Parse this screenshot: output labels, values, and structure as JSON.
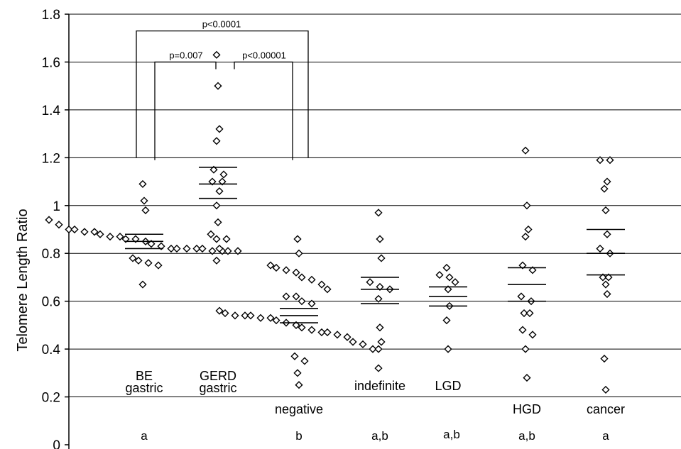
{
  "chart_data": {
    "type": "scatter",
    "ylabel": "Telomere Length Ratio",
    "ylim": [
      0,
      1.8
    ],
    "yticks": [
      "0",
      "0.2",
      "0.4",
      "0.6",
      "0.8",
      "1",
      "1.2",
      "1.4",
      "1.6",
      "1.8"
    ],
    "grid": true,
    "groups": [
      {
        "label_line1": "BE",
        "label_line2": "gastric",
        "letter": "a",
        "mean": 0.85,
        "ci": [
          0.82,
          0.88
        ],
        "values": [
          1.09,
          1.02,
          0.98,
          0.94,
          0.92,
          0.9,
          0.9,
          0.89,
          0.89,
          0.88,
          0.87,
          0.87,
          0.86,
          0.86,
          0.85,
          0.84,
          0.83,
          0.82,
          0.82,
          0.82,
          0.82,
          0.82,
          0.81,
          0.81,
          0.81,
          0.81,
          0.78,
          0.77,
          0.76,
          0.75,
          0.67
        ]
      },
      {
        "label_line1": "GERD",
        "label_line2": "gastric",
        "letter": "",
        "mean": 1.09,
        "ci": [
          1.03,
          1.16
        ],
        "values": [
          1.63,
          1.5,
          1.32,
          1.27,
          1.15,
          1.13,
          1.1,
          1.1,
          1.06,
          1.0,
          0.93,
          0.88,
          0.86,
          0.86,
          0.82,
          0.77
        ]
      },
      {
        "label_line1": "negative",
        "label_line2": "",
        "letter": "b",
        "mean": 0.54,
        "ci": [
          0.51,
          0.57
        ],
        "values": [
          0.86,
          0.8,
          0.75,
          0.74,
          0.73,
          0.72,
          0.7,
          0.69,
          0.67,
          0.65,
          0.62,
          0.62,
          0.6,
          0.59,
          0.56,
          0.55,
          0.54,
          0.54,
          0.54,
          0.53,
          0.53,
          0.52,
          0.51,
          0.5,
          0.49,
          0.48,
          0.47,
          0.47,
          0.46,
          0.45,
          0.43,
          0.42,
          0.4,
          0.4,
          0.37,
          0.35,
          0.3,
          0.25
        ]
      },
      {
        "label_line1": "indefinite",
        "label_line2": "",
        "letter": "a,b",
        "mean": 0.65,
        "ci": [
          0.59,
          0.7
        ],
        "values": [
          0.97,
          0.86,
          0.78,
          0.68,
          0.66,
          0.65,
          0.61,
          0.49,
          0.43,
          0.32
        ]
      },
      {
        "label_line1": "LGD",
        "label_line2": "",
        "letter": "a,b",
        "mean": 0.62,
        "ci": [
          0.58,
          0.66
        ],
        "values": [
          0.74,
          0.71,
          0.7,
          0.68,
          0.65,
          0.58,
          0.52,
          0.4
        ]
      },
      {
        "label_line1": "HGD",
        "label_line2": "",
        "letter": "a,b",
        "mean": 0.67,
        "ci": [
          0.6,
          0.74
        ],
        "values": [
          1.23,
          1.0,
          0.9,
          0.87,
          0.75,
          0.73,
          0.62,
          0.6,
          0.55,
          0.55,
          0.48,
          0.46,
          0.4,
          0.28
        ]
      },
      {
        "label_line1": "cancer",
        "label_line2": "",
        "letter": "a",
        "mean": 0.8,
        "ci": [
          0.71,
          0.9
        ],
        "values": [
          1.19,
          1.19,
          1.1,
          1.07,
          0.98,
          0.88,
          0.82,
          0.8,
          0.7,
          0.7,
          0.67,
          0.63,
          0.36,
          0.23
        ]
      }
    ],
    "comparisons": [
      {
        "label": "p<0.0001",
        "from": 0,
        "to": 2,
        "y": 1.73
      },
      {
        "label": "p=0.007",
        "from": 0,
        "to": 1,
        "y": 1.6
      },
      {
        "label": "p<0.00001",
        "from": 1,
        "to": 2,
        "y": 1.6
      }
    ]
  }
}
